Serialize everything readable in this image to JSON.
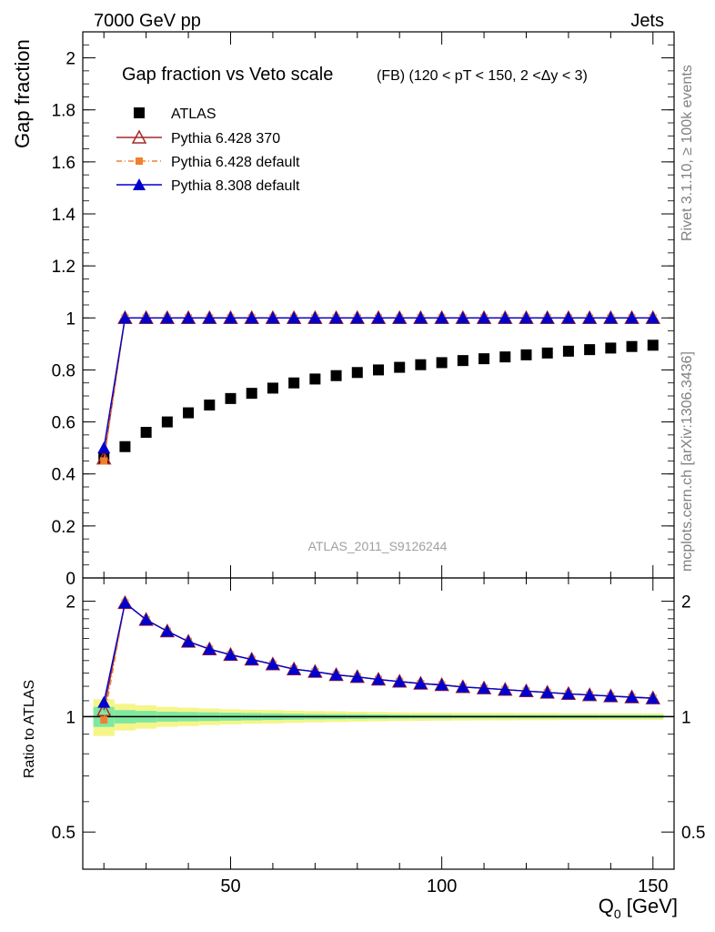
{
  "header": {
    "left_label": "7000 GeV pp",
    "right_label": "Jets"
  },
  "side_labels": {
    "rivet": "Rivet 3.1.10, ≥ 100k events",
    "mcplots": "mcplots.cern.ch [arXiv:1306.3436]"
  },
  "chart_data": [
    {
      "type": "scatter",
      "title": "Gap fraction vs Veto scale",
      "subtitle": "(FB) (120 < pT < 150, 2 <Δy < 3)",
      "ylabel": "Gap fraction",
      "xlabel": "",
      "xlim": [
        15,
        155
      ],
      "ylim": [
        0,
        2.1
      ],
      "yticks": [
        "0",
        "0.2",
        "0.4",
        "0.6",
        "0.8",
        "1",
        "1.2",
        "1.4",
        "1.6",
        "1.8",
        "2"
      ],
      "watermark": "ATLAS_2011_S9126244",
      "legend_position": "top-left",
      "x": [
        20,
        25,
        30,
        35,
        40,
        45,
        50,
        55,
        60,
        65,
        70,
        75,
        80,
        85,
        90,
        95,
        100,
        105,
        110,
        115,
        120,
        125,
        130,
        135,
        140,
        145,
        150
      ],
      "series": [
        {
          "name": "ATLAS",
          "color": "#000000",
          "marker": "square",
          "line": "none",
          "values": [
            0.46,
            0.505,
            0.56,
            0.6,
            0.635,
            0.665,
            0.69,
            0.71,
            0.73,
            0.75,
            0.765,
            0.778,
            0.79,
            0.8,
            0.81,
            0.82,
            0.828,
            0.836,
            0.843,
            0.85,
            0.858,
            0.865,
            0.872,
            0.878,
            0.884,
            0.89,
            0.895
          ]
        },
        {
          "name": "Pythia 6.428 370",
          "color": "#a52a2a",
          "marker": "triangle-open",
          "line": "solid",
          "values": [
            0.46,
            1,
            1,
            1,
            1,
            1,
            1,
            1,
            1,
            1,
            1,
            1,
            1,
            1,
            1,
            1,
            1,
            1,
            1,
            1,
            1,
            1,
            1,
            1,
            1,
            1,
            1
          ]
        },
        {
          "name": "Pythia 6.428 default",
          "color": "#f08030",
          "marker": "square-small",
          "line": "dashdot",
          "values": [
            0.45,
            1,
            1,
            1,
            1,
            1,
            1,
            1,
            1,
            1,
            1,
            1,
            1,
            1,
            1,
            1,
            1,
            1,
            1,
            1,
            1,
            1,
            1,
            1,
            1,
            1,
            1
          ]
        },
        {
          "name": "Pythia 8.308 default",
          "color": "#0000cc",
          "marker": "triangle-filled",
          "line": "solid",
          "values": [
            0.5,
            1,
            1,
            1,
            1,
            1,
            1,
            1,
            1,
            1,
            1,
            1,
            1,
            1,
            1,
            1,
            1,
            1,
            1,
            1,
            1,
            1,
            1,
            1,
            1,
            1,
            1
          ]
        }
      ]
    },
    {
      "type": "line",
      "ylabel": "Ratio to ATLAS",
      "xlabel": "Q0 [GeV]",
      "xlim": [
        15,
        155
      ],
      "ylim": [
        0.4,
        2.3
      ],
      "log_y": true,
      "xticks": [
        "50",
        "100",
        "150"
      ],
      "yticks": [
        "0.5",
        "1",
        "2"
      ],
      "x": [
        20,
        25,
        30,
        35,
        40,
        45,
        50,
        55,
        60,
        65,
        70,
        75,
        80,
        85,
        90,
        95,
        100,
        105,
        110,
        115,
        120,
        125,
        130,
        135,
        140,
        145,
        150
      ],
      "series": [
        {
          "name": "Pythia 6.428 370",
          "color": "#a52a2a",
          "values": [
            1.04,
            1.98,
            1.79,
            1.67,
            1.57,
            1.5,
            1.45,
            1.41,
            1.37,
            1.33,
            1.31,
            1.285,
            1.27,
            1.25,
            1.235,
            1.22,
            1.21,
            1.195,
            1.186,
            1.176,
            1.166,
            1.156,
            1.147,
            1.139,
            1.131,
            1.124,
            1.117
          ]
        },
        {
          "name": "Pythia 6.428 default",
          "color": "#f08030",
          "values": [
            0.98,
            1.98,
            1.79,
            1.67,
            1.57,
            1.5,
            1.45,
            1.41,
            1.37,
            1.33,
            1.31,
            1.285,
            1.27,
            1.25,
            1.235,
            1.22,
            1.21,
            1.195,
            1.186,
            1.176,
            1.166,
            1.156,
            1.147,
            1.139,
            1.131,
            1.124,
            1.117
          ]
        },
        {
          "name": "Pythia 8.308 default",
          "color": "#0000cc",
          "values": [
            1.09,
            1.98,
            1.79,
            1.67,
            1.57,
            1.5,
            1.45,
            1.41,
            1.37,
            1.33,
            1.31,
            1.285,
            1.27,
            1.25,
            1.235,
            1.22,
            1.21,
            1.195,
            1.186,
            1.176,
            1.166,
            1.156,
            1.147,
            1.139,
            1.131,
            1.124,
            1.117
          ]
        }
      ],
      "band": {
        "inner_color": "#7fe8a0",
        "outer_color": "#f5f58a",
        "inner": [
          0.06,
          0.04,
          0.035,
          0.03,
          0.028,
          0.026,
          0.024,
          0.022,
          0.02,
          0.018,
          0.016,
          0.015,
          0.014,
          0.013,
          0.012,
          0.011,
          0.011,
          0.01,
          0.01,
          0.01,
          0.01,
          0.01,
          0.01,
          0.01,
          0.01,
          0.01,
          0.01
        ],
        "outer": [
          0.11,
          0.08,
          0.07,
          0.06,
          0.055,
          0.05,
          0.045,
          0.042,
          0.04,
          0.037,
          0.034,
          0.032,
          0.03,
          0.028,
          0.026,
          0.025,
          0.024,
          0.023,
          0.022,
          0.022,
          0.021,
          0.021,
          0.02,
          0.02,
          0.02,
          0.02,
          0.02
        ]
      }
    }
  ]
}
